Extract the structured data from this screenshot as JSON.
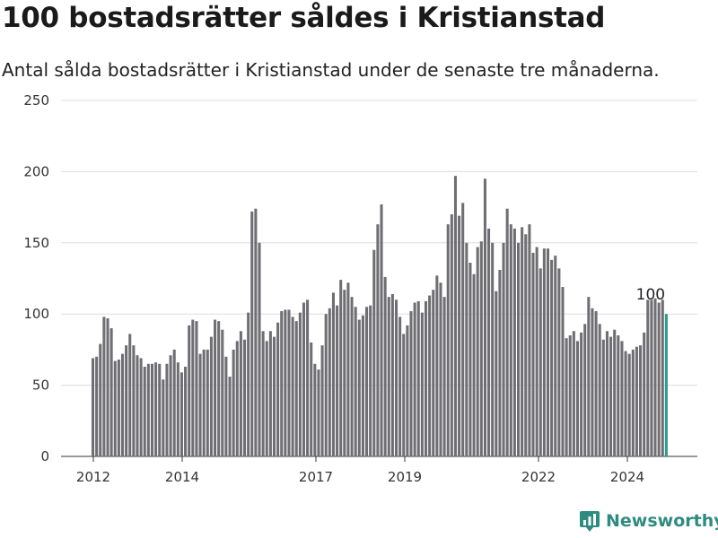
{
  "title": "100 bostadsrätter såldes i Kristianstad",
  "subtitle": "Antal sålda bostadsrätter i Kristianstad under de senaste tre månaderna.",
  "brand": "Newsworthy",
  "colors": {
    "bar": "#6e6e73",
    "highlight": "#2a9d8f",
    "grid": "#dddddd",
    "brand": "#2e8b80"
  },
  "chart_data": {
    "type": "bar",
    "title": "100 bostadsrätter såldes i Kristianstad",
    "subtitle": "Antal sålda bostadsrätter i Kristianstad under de senaste tre månaderna.",
    "xlabel": "",
    "ylabel": "",
    "ylim": [
      0,
      250
    ],
    "yticks": [
      0,
      50,
      100,
      150,
      200,
      250
    ],
    "xticks": [
      "2012",
      "2014",
      "2017",
      "2019",
      "2022",
      "2024"
    ],
    "grid": true,
    "legend": "none",
    "annotation": {
      "text": "100",
      "value": 100
    },
    "values": [
      69,
      70,
      79,
      98,
      97,
      90,
      67,
      68,
      72,
      78,
      86,
      78,
      71,
      69,
      63,
      65,
      65,
      66,
      65,
      54,
      65,
      71,
      75,
      66,
      59,
      63,
      92,
      96,
      95,
      72,
      75,
      75,
      84,
      96,
      95,
      89,
      70,
      56,
      75,
      81,
      88,
      82,
      101,
      172,
      174,
      150,
      88,
      81,
      88,
      84,
      94,
      102,
      103,
      103,
      98,
      95,
      101,
      108,
      110,
      80,
      65,
      61,
      78,
      100,
      104,
      115,
      106,
      124,
      117,
      122,
      112,
      105,
      96,
      99,
      105,
      106,
      145,
      163,
      177,
      126,
      112,
      114,
      110,
      98,
      86,
      92,
      102,
      108,
      109,
      101,
      109,
      113,
      117,
      127,
      122,
      112,
      163,
      170,
      197,
      169,
      178,
      150,
      136,
      128,
      147,
      151,
      195,
      160,
      150,
      116,
      131,
      150,
      174,
      163,
      160,
      150,
      161,
      156,
      163,
      143,
      147,
      132,
      146,
      146,
      138,
      141,
      132,
      119,
      83,
      85,
      88,
      81,
      87,
      93,
      112,
      104,
      102,
      93,
      82,
      88,
      84,
      89,
      85,
      81,
      74,
      72,
      75,
      77,
      78,
      87,
      110,
      110,
      111,
      108,
      110,
      100
    ]
  }
}
